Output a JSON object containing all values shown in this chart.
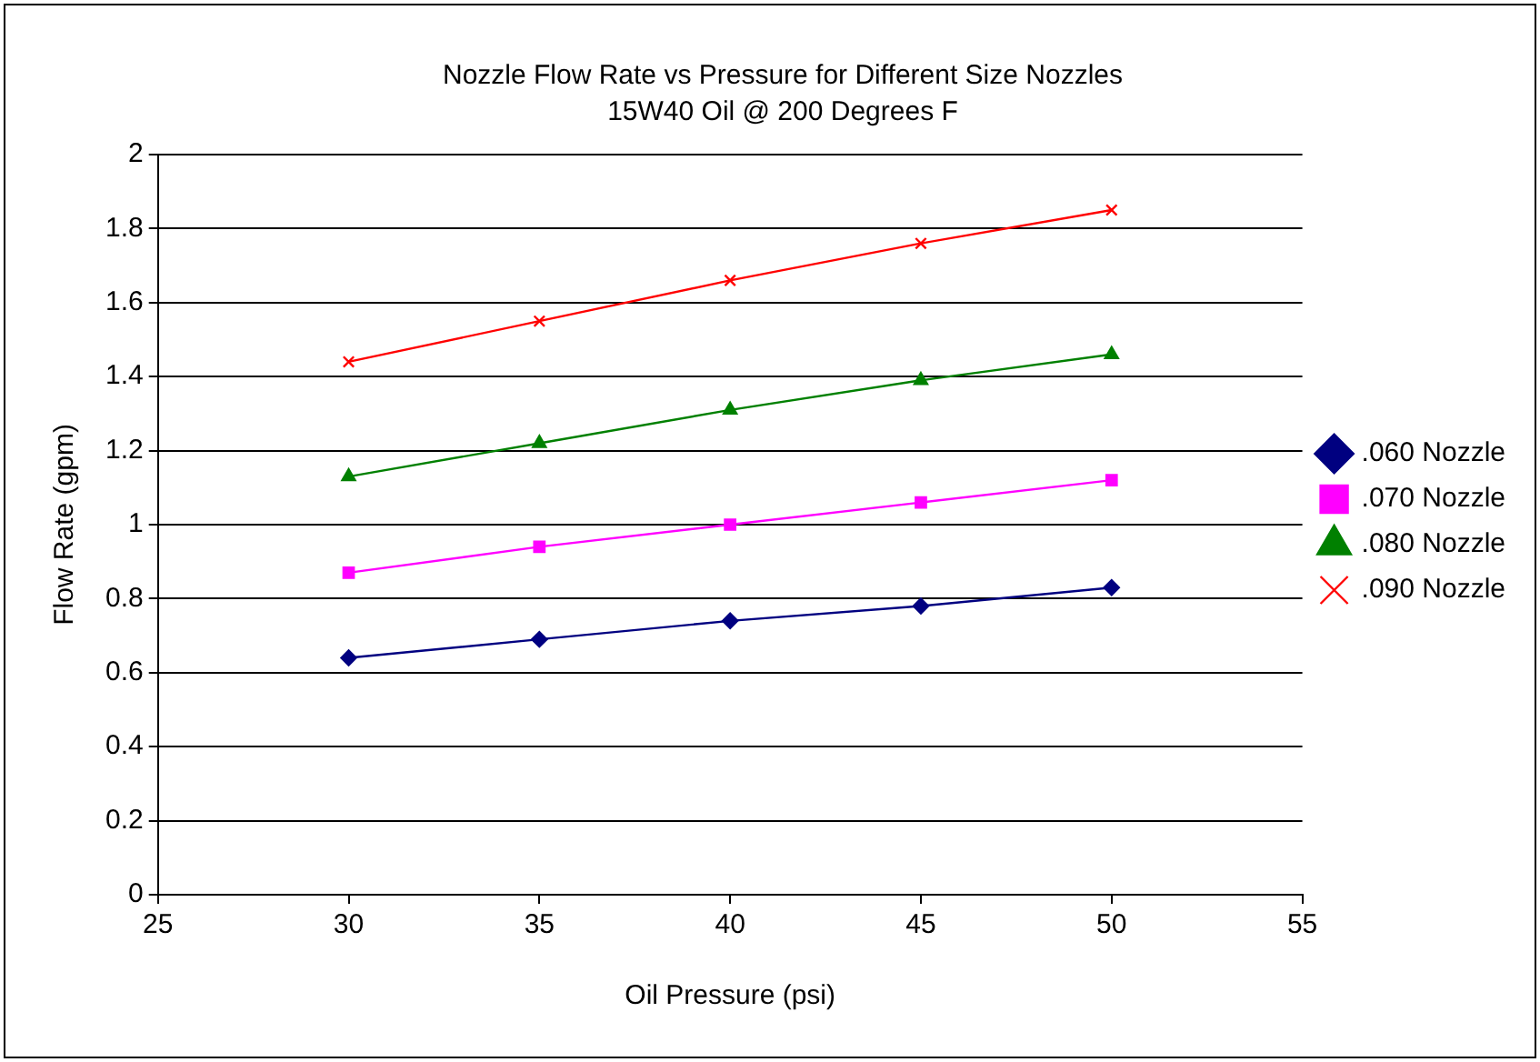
{
  "chart_data": {
    "type": "line",
    "title": "Nozzle Flow Rate vs Pressure for Different Size Nozzles",
    "subtitle": "15W40 Oil @ 200 Degrees F",
    "xlabel": "Oil Pressure (psi)",
    "ylabel": "Flow Rate (gpm)",
    "x": [
      30,
      35,
      40,
      45,
      50
    ],
    "series": [
      {
        "name": ".060 Nozzle",
        "color": "#000080",
        "marker": "diamond",
        "values": [
          0.64,
          0.69,
          0.74,
          0.78,
          0.83
        ]
      },
      {
        "name": ".070 Nozzle",
        "color": "#ff00ff",
        "marker": "square",
        "values": [
          0.87,
          0.94,
          1.0,
          1.06,
          1.12
        ]
      },
      {
        "name": ".080 Nozzle",
        "color": "#008000",
        "marker": "triangle",
        "values": [
          1.13,
          1.22,
          1.31,
          1.39,
          1.46
        ]
      },
      {
        "name": ".090 Nozzle",
        "color": "#ff0000",
        "marker": "cross",
        "values": [
          1.44,
          1.55,
          1.66,
          1.76,
          1.85
        ]
      }
    ],
    "xlim": [
      25,
      55
    ],
    "xticks": [
      25,
      30,
      35,
      40,
      45,
      50,
      55
    ],
    "ylim": [
      0,
      2
    ],
    "yticks": [
      0,
      0.2,
      0.4,
      0.6,
      0.8,
      1,
      1.2,
      1.4,
      1.6,
      1.8,
      2
    ],
    "grid": "y",
    "legend": "right",
    "line_style": "solid"
  }
}
